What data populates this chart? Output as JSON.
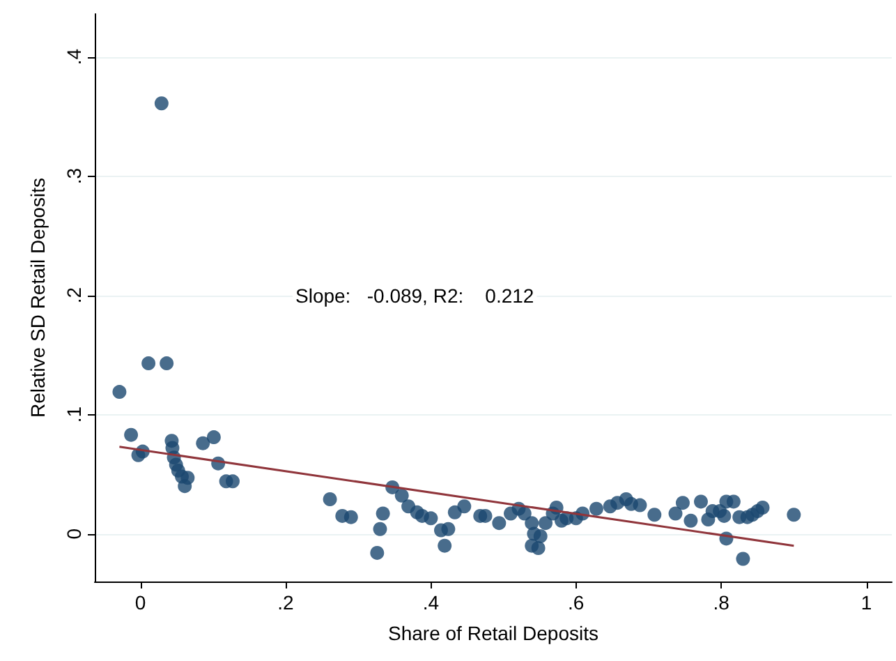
{
  "chart_data": {
    "type": "scatter",
    "xlabel": "Share of Retail Deposits",
    "ylabel": "Relative SD Retail Deposits",
    "annotations": [
      "Slope:   -0.089, R2:    0.212"
    ],
    "xlim": [
      -0.063,
      1.035
    ],
    "ylim": [
      -0.04,
      0.436
    ],
    "xticks": [
      {
        "value": 0,
        "label": "0"
      },
      {
        "value": 0.2,
        "label": ".2"
      },
      {
        "value": 0.4,
        "label": ".4"
      },
      {
        "value": 0.6,
        "label": ".6"
      },
      {
        "value": 0.8,
        "label": ".8"
      },
      {
        "value": 1,
        "label": "1"
      }
    ],
    "yticks": [
      {
        "value": 0,
        "label": "0"
      },
      {
        "value": 0.1,
        "label": ".1"
      },
      {
        "value": 0.2,
        "label": ".2"
      },
      {
        "value": 0.3,
        "label": ".3"
      },
      {
        "value": 0.4,
        "label": ".4"
      }
    ],
    "grid": "y",
    "marker": "circle",
    "series": [
      {
        "color": "#1a476f",
        "x": [
          0.029,
          -0.029,
          0.011,
          0.036,
          -0.013,
          -0.003,
          0.003,
          0.043,
          0.044,
          0.046,
          0.049,
          0.052,
          0.057,
          0.065,
          0.061,
          0.086,
          0.101,
          0.107,
          0.118,
          0.127,
          0.261,
          0.278,
          0.29,
          0.326,
          0.33,
          0.334,
          0.347,
          0.36,
          0.369,
          0.381,
          0.388,
          0.4,
          0.414,
          0.419,
          0.424,
          0.433,
          0.446,
          0.468,
          0.475,
          0.494,
          0.51,
          0.521,
          0.529,
          0.539,
          0.542,
          0.539,
          0.548,
          0.551,
          0.558,
          0.568,
          0.573,
          0.58,
          0.587,
          0.6,
          0.609,
          0.628,
          0.647,
          0.657,
          0.669,
          0.676,
          0.688,
          0.708,
          0.737,
          0.747,
          0.758,
          0.772,
          0.782,
          0.788,
          0.798,
          0.804,
          0.807,
          0.817,
          0.807,
          0.83,
          0.825,
          0.836,
          0.843,
          0.85,
          0.857,
          0.9
        ],
        "values": [
          0.361,
          0.119,
          0.143,
          0.143,
          0.083,
          0.066,
          0.069,
          0.078,
          0.072,
          0.064,
          0.058,
          0.053,
          0.048,
          0.047,
          0.04,
          0.076,
          0.081,
          0.059,
          0.044,
          0.044,
          0.029,
          0.015,
          0.014,
          -0.016,
          0.004,
          0.017,
          0.039,
          0.032,
          0.023,
          0.018,
          0.015,
          0.013,
          0.003,
          -0.01,
          0.004,
          0.018,
          0.023,
          0.015,
          0.015,
          0.009,
          0.017,
          0.021,
          0.017,
          0.009,
          0.0,
          -0.01,
          -0.012,
          -0.002,
          0.009,
          0.017,
          0.022,
          0.011,
          0.013,
          0.013,
          0.017,
          0.021,
          0.023,
          0.026,
          0.029,
          0.025,
          0.024,
          0.016,
          0.017,
          0.026,
          0.011,
          0.027,
          0.012,
          0.019,
          0.019,
          0.015,
          0.027,
          0.027,
          -0.004,
          -0.021,
          0.014,
          0.014,
          0.016,
          0.019,
          0.022,
          0.016
        ]
      },
      {
        "type": "line",
        "color": "#90353b",
        "marker": "none",
        "x": [
          -0.029,
          0.9
        ],
        "values": [
          0.073,
          -0.01
        ]
      }
    ]
  }
}
